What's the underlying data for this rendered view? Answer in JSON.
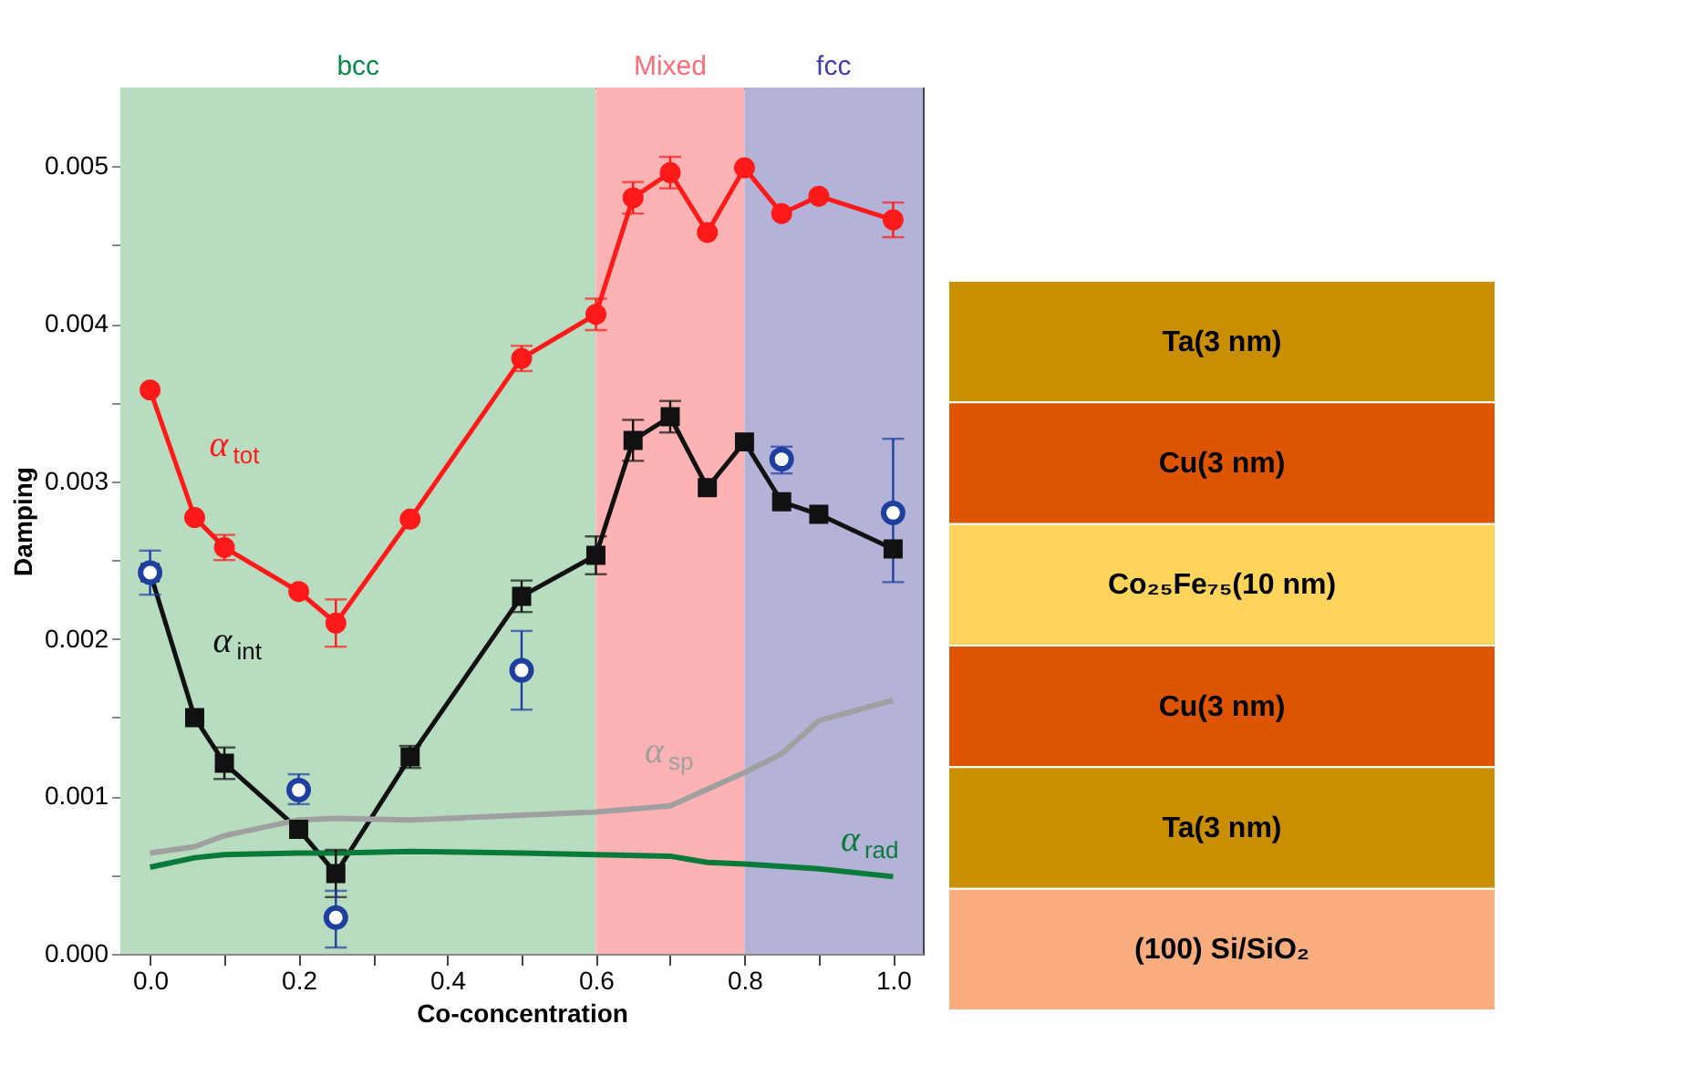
{
  "chart_data": [
    {
      "type": "line",
      "xlabel": "Co-concentration",
      "ylabel": "Damping",
      "xlim": [
        -0.04,
        1.04
      ],
      "ylim": [
        0,
        0.0055
      ],
      "xticks": [
        {
          "value": 0,
          "label": "0.0"
        },
        {
          "value": 0.1,
          "label": null
        },
        {
          "value": 0.2,
          "label": "0.2"
        },
        {
          "value": 0.3,
          "label": null
        },
        {
          "value": 0.4,
          "label": "0.4"
        },
        {
          "value": 0.5,
          "label": null
        },
        {
          "value": 0.6,
          "label": "0.6"
        },
        {
          "value": 0.7,
          "label": null
        },
        {
          "value": 0.8,
          "label": "0.8"
        },
        {
          "value": 0.9,
          "label": null
        },
        {
          "value": 1,
          "label": "1.0"
        }
      ],
      "yticks": [
        {
          "value": 0,
          "label": "0.000"
        },
        {
          "value": 0.0005,
          "label": null
        },
        {
          "value": 0.001,
          "label": "0.001"
        },
        {
          "value": 0.0015,
          "label": null
        },
        {
          "value": 0.002,
          "label": "0.002"
        },
        {
          "value": 0.0025,
          "label": null
        },
        {
          "value": 0.003,
          "label": "0.003"
        },
        {
          "value": 0.0035,
          "label": null
        },
        {
          "value": 0.004,
          "label": "0.004"
        },
        {
          "value": 0.0045,
          "label": null
        },
        {
          "value": 0.005,
          "label": "0.005"
        }
      ],
      "bands": [
        {
          "axis": "x",
          "from": -0.04,
          "to": 0.6,
          "label": "bcc",
          "color": "#b8dcc0"
        },
        {
          "axis": "x",
          "from": 0.6,
          "to": 0.8,
          "label": "Mixed",
          "color": "#fdb3b3"
        },
        {
          "axis": "x",
          "from": 0.8,
          "to": 1.04,
          "label": "fcc",
          "color": "#b3b3d8"
        }
      ],
      "series": [
        {
          "name": "α$_{tot}$",
          "color": "#ff1a1a",
          "marker": "circle",
          "x": [
            0,
            0.06,
            0.1,
            0.2,
            0.25,
            0.35,
            0.5,
            0.6,
            0.65,
            0.7,
            0.75,
            0.8,
            0.85,
            0.9,
            1.0
          ],
          "values": [
            0.00358,
            0.00277,
            0.00258,
            0.0023,
            0.0021,
            0.00276,
            0.00378,
            0.00406,
            0.0048,
            0.00496,
            0.00458,
            0.00499,
            0.0047,
            0.00481,
            0.00466
          ],
          "errors": [
            null,
            null,
            8e-05,
            null,
            [
              0.00195,
              0.00225
            ],
            null,
            8e-05,
            0.0001,
            0.0001,
            0.0001,
            null,
            null,
            null,
            null,
            0.00011
          ]
        },
        {
          "name": "α$_{int}$",
          "color": "#111111",
          "marker": "square",
          "x": [
            0,
            0.06,
            0.1,
            0.2,
            0.25,
            0.35,
            0.5,
            0.6,
            0.65,
            0.7,
            0.75,
            0.8,
            0.85,
            0.9,
            1.0
          ],
          "values": [
            0.00242,
            0.0015,
            0.00121,
            0.00079,
            0.00051,
            0.00125,
            0.00227,
            0.00253,
            0.00326,
            0.00341,
            0.00296,
            0.00325,
            0.00287,
            0.00279,
            0.00257
          ],
          "errors": [
            null,
            null,
            0.0001,
            null,
            0.00015,
            7e-05,
            0.0001,
            0.00012,
            0.00013,
            0.0001,
            null,
            null,
            null,
            null,
            null
          ]
        },
        {
          "type": "scatter",
          "color": "#1f3f9f",
          "marker": "circle",
          "x": [
            0,
            0.2,
            0.25,
            0.5,
            0.85,
            1.0
          ],
          "values": [
            0.00242,
            0.00104,
            0.00023,
            0.0018,
            0.00314,
            0.0028
          ],
          "errors": [
            [
              0.00228,
              0.00256
            ],
            [
              0.00095,
              0.00114
            ],
            [
              4e-05,
              0.0004
            ],
            [
              0.00155,
              0.00205
            ],
            [
              0.00305,
              0.00322
            ],
            [
              0.00236,
              0.00327
            ]
          ]
        },
        {
          "name": "α$_{sp}$",
          "color": "#a0a0a0",
          "marker": "none",
          "x": [
            0,
            0.06,
            0.1,
            0.2,
            0.25,
            0.35,
            0.5,
            0.6,
            0.7,
            0.8,
            0.85,
            0.9,
            1.0
          ],
          "values": [
            0.00064,
            0.00068,
            0.00075,
            0.00085,
            0.00086,
            0.00085,
            0.00088,
            0.0009,
            0.00094,
            0.00115,
            0.00127,
            0.00148,
            0.00161
          ]
        },
        {
          "name": "α$_{rad}$",
          "color": "#0a7a3a",
          "marker": "none",
          "x": [
            0,
            0.06,
            0.1,
            0.2,
            0.25,
            0.35,
            0.5,
            0.6,
            0.7,
            0.75,
            0.8,
            0.9,
            1.0
          ],
          "values": [
            0.00055,
            0.00061,
            0.00063,
            0.00064,
            0.00064,
            0.00065,
            0.00064,
            0.00063,
            0.00062,
            0.00058,
            0.00057,
            0.00054,
            0.00049
          ]
        }
      ]
    },
    {
      "type": "other",
      "categories": [
        "Ta(3 nm)",
        "Cu(3 nm)",
        "Co₂₅Fe₇₅(10 nm)",
        "Cu(3 nm)",
        "Ta(3 nm)",
        "(100) Si/SiO₂"
      ],
      "colors": [
        "#c98f00",
        "#dd5500",
        "#ffd45a",
        "#dd5500",
        "#c98f00",
        "#f9ad7f"
      ]
    }
  ]
}
